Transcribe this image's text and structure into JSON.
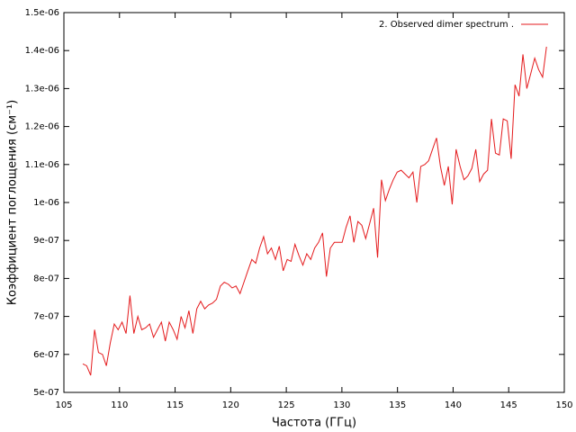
{
  "chart_data": {
    "type": "line",
    "x_label": "Частота (ГГц)",
    "y_label": "Коэффициент поглощения (см⁻¹)",
    "legend": "top-right",
    "xlim": [
      105,
      150
    ],
    "xticks": [
      105,
      110,
      115,
      120,
      125,
      130,
      135,
      140,
      145,
      150
    ],
    "ylim": [
      5e-07,
      1.5e-06
    ],
    "yticks": [
      {
        "value": 5e-07,
        "label": "5e-07"
      },
      {
        "value": 6e-07,
        "label": "6e-07"
      },
      {
        "value": 7e-07,
        "label": "7e-07"
      },
      {
        "value": 8e-07,
        "label": "8e-07"
      },
      {
        "value": 9e-07,
        "label": "9e-07"
      },
      {
        "value": 1e-06,
        "label": "1e-06"
      },
      {
        "value": 1.1e-06,
        "label": "1.1e-06"
      },
      {
        "value": 1.2e-06,
        "label": "1.2e-06"
      },
      {
        "value": 1.3e-06,
        "label": "1.3e-06"
      },
      {
        "value": 1.4e-06,
        "label": "1.4e-06"
      },
      {
        "value": 1.5e-06,
        "label": "1.5e-06"
      }
    ],
    "x": [
      106.7,
      107.05,
      107.41,
      107.76,
      108.11,
      108.47,
      108.82,
      109.17,
      109.53,
      109.88,
      110.23,
      110.59,
      110.94,
      111.29,
      111.65,
      112.0,
      112.35,
      112.71,
      113.06,
      113.41,
      113.77,
      114.12,
      114.47,
      114.83,
      115.18,
      115.54,
      115.89,
      116.24,
      116.6,
      116.95,
      117.3,
      117.66,
      118.01,
      118.36,
      118.72,
      119.07,
      119.42,
      119.78,
      120.13,
      120.48,
      120.84,
      121.19,
      121.54,
      121.9,
      122.25,
      122.6,
      122.96,
      123.31,
      123.66,
      124.02,
      124.37,
      124.72,
      125.08,
      125.43,
      125.78,
      126.14,
      126.49,
      126.84,
      127.2,
      127.55,
      127.9,
      128.26,
      128.61,
      128.96,
      129.32,
      129.67,
      130.02,
      130.38,
      130.73,
      131.08,
      131.44,
      131.79,
      132.14,
      132.5,
      132.85,
      133.21,
      133.56,
      133.91,
      134.27,
      134.62,
      134.97,
      135.33,
      135.68,
      136.03,
      136.39,
      136.74,
      137.09,
      137.45,
      137.8,
      138.15,
      138.51,
      138.86,
      139.21,
      139.57,
      139.92,
      140.27,
      140.63,
      140.98,
      141.33,
      141.69,
      142.04,
      142.39,
      142.75,
      143.1,
      143.45,
      143.81,
      144.16,
      144.51,
      144.87,
      145.22,
      145.57,
      145.93,
      146.28,
      146.63,
      146.99,
      147.34,
      147.69,
      148.05,
      148.4
    ],
    "series": [
      {
        "name": "2. Observed dimer spectrum .",
        "color": "#e41a1c",
        "values": [
          5.75e-07,
          5.7e-07,
          5.45e-07,
          6.65e-07,
          6.05e-07,
          6e-07,
          5.7e-07,
          6.3e-07,
          6.8e-07,
          6.65e-07,
          6.85e-07,
          6.55e-07,
          7.55e-07,
          6.55e-07,
          7e-07,
          6.65e-07,
          6.7e-07,
          6.8e-07,
          6.45e-07,
          6.65e-07,
          6.85e-07,
          6.35e-07,
          6.85e-07,
          6.65e-07,
          6.4e-07,
          7e-07,
          6.7e-07,
          7.15e-07,
          6.55e-07,
          7.2e-07,
          7.4e-07,
          7.2e-07,
          7.3e-07,
          7.35e-07,
          7.45e-07,
          7.8e-07,
          7.9e-07,
          7.85e-07,
          7.75e-07,
          7.8e-07,
          7.6e-07,
          7.9e-07,
          8.2e-07,
          8.5e-07,
          8.4e-07,
          8.8e-07,
          9.1e-07,
          8.65e-07,
          8.8e-07,
          8.5e-07,
          8.85e-07,
          8.2e-07,
          8.5e-07,
          8.45e-07,
          8.9e-07,
          8.6e-07,
          8.35e-07,
          8.65e-07,
          8.5e-07,
          8.8e-07,
          8.95e-07,
          9.2e-07,
          8.05e-07,
          8.8e-07,
          8.95e-07,
          8.95e-07,
          8.95e-07,
          9.35e-07,
          9.65e-07,
          8.95e-07,
          9.5e-07,
          9.4e-07,
          9.05e-07,
          9.45e-07,
          9.85e-07,
          8.55e-07,
          1.06e-06,
          1.005e-06,
          1.035e-06,
          1.06e-06,
          1.08e-06,
          1.085e-06,
          1.075e-06,
          1.065e-06,
          1.08e-06,
          1e-06,
          1.095e-06,
          1.1e-06,
          1.11e-06,
          1.14e-06,
          1.17e-06,
          1.095e-06,
          1.045e-06,
          1.095e-06,
          9.95e-07,
          1.14e-06,
          1.095e-06,
          1.06e-06,
          1.07e-06,
          1.09e-06,
          1.14e-06,
          1.055e-06,
          1.075e-06,
          1.085e-06,
          1.22e-06,
          1.13e-06,
          1.125e-06,
          1.22e-06,
          1.215e-06,
          1.115e-06,
          1.31e-06,
          1.28e-06,
          1.39e-06,
          1.3e-06,
          1.34e-06,
          1.38e-06,
          1.35e-06,
          1.33e-06,
          1.41e-06
        ]
      }
    ]
  }
}
